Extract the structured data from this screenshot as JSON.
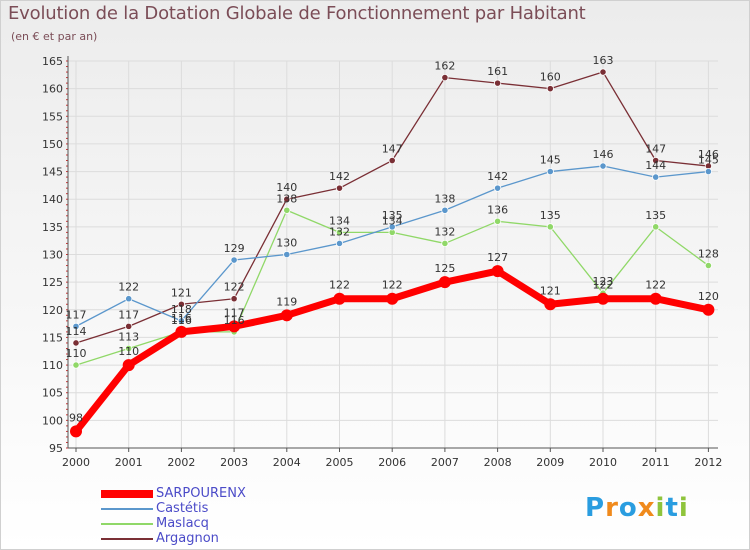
{
  "header": {
    "title": "Evolution de la Dotation Globale de Fonctionnement par Habitant",
    "subtitle": "(en € et par an)"
  },
  "logo": {
    "text": "Proxiti",
    "colors": [
      "#2a9de0",
      "#f08a1c",
      "#2a9de0",
      "#f08a1c",
      "#8fc43c",
      "#2a9de0",
      "#8fc43c"
    ]
  },
  "chart_data": {
    "type": "line",
    "title": "Evolution de la Dotation Globale de Fonctionnement par Habitant",
    "subtitle": "(en € et par an)",
    "xlabel": "",
    "ylabel": "",
    "x": [
      2000,
      2001,
      2002,
      2003,
      2004,
      2005,
      2006,
      2007,
      2008,
      2009,
      2010,
      2011,
      2012
    ],
    "ylim": [
      95,
      165
    ],
    "yticks": [
      95,
      100,
      105,
      110,
      115,
      120,
      125,
      130,
      135,
      140,
      145,
      150,
      155,
      160,
      165
    ],
    "grid": true,
    "legend_position": "bottom-left",
    "series": [
      {
        "name": "SARPOURENX",
        "color": "#ff0000",
        "emphasis": true,
        "values": [
          98,
          110,
          116,
          117,
          119,
          122,
          122,
          125,
          127,
          121,
          122,
          122,
          120
        ]
      },
      {
        "name": "Castétis",
        "color": "#5b97cc",
        "emphasis": false,
        "values": [
          117,
          122,
          118,
          129,
          130,
          132,
          135,
          138,
          142,
          145,
          146,
          144,
          145
        ]
      },
      {
        "name": "Maslacq",
        "color": "#90d868",
        "emphasis": false,
        "values": [
          110,
          113,
          116,
          116,
          138,
          134,
          134,
          132,
          136,
          135,
          123,
          135,
          128
        ]
      },
      {
        "name": "Argagnon",
        "color": "#7a2f35",
        "emphasis": false,
        "values": [
          114,
          117,
          121,
          122,
          140,
          142,
          147,
          162,
          161,
          160,
          163,
          147,
          146
        ]
      }
    ]
  }
}
